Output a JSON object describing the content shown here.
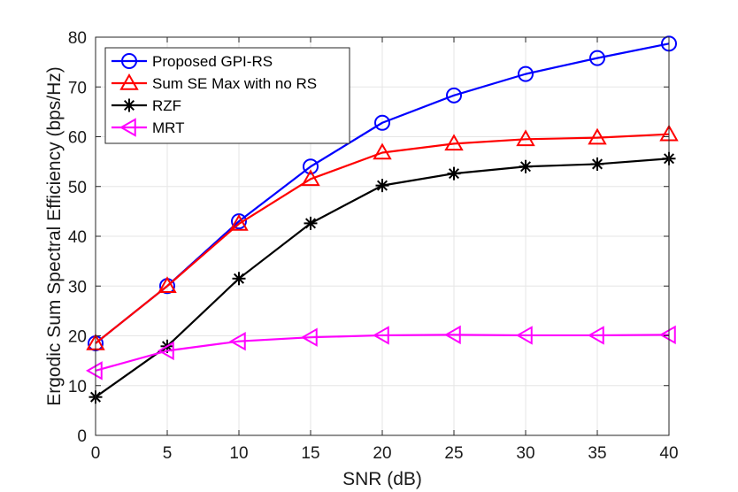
{
  "chart_data": {
    "type": "line",
    "title": "",
    "xlabel": "SNR (dB)",
    "ylabel": "Ergodic Sum Spectral Efficiency (bps/Hz)",
    "xlim": [
      0,
      40
    ],
    "ylim": [
      0,
      80
    ],
    "x_ticks": [
      0,
      5,
      10,
      15,
      20,
      25,
      30,
      35,
      40
    ],
    "y_ticks": [
      0,
      10,
      20,
      30,
      40,
      50,
      60,
      70,
      80
    ],
    "grid": true,
    "legend_position": "top-left",
    "x": [
      0,
      5,
      10,
      15,
      20,
      25,
      30,
      35,
      40
    ],
    "series": [
      {
        "name": "Proposed GPI-RS",
        "color": "#0000ff",
        "marker": "circle",
        "values": [
          18.5,
          30.0,
          43.0,
          54.0,
          62.8,
          68.3,
          72.6,
          75.8,
          78.7
        ]
      },
      {
        "name": "Sum SE Max with no RS",
        "color": "#ff0000",
        "marker": "triangle-up",
        "values": [
          18.5,
          30.0,
          42.5,
          51.5,
          56.8,
          58.6,
          59.5,
          59.8,
          60.5
        ]
      },
      {
        "name": "RZF",
        "color": "#000000",
        "marker": "asterisk",
        "values": [
          7.7,
          17.9,
          31.5,
          42.6,
          50.2,
          52.6,
          54.0,
          54.5,
          55.6
        ]
      },
      {
        "name": "MRT",
        "color": "#ff00ff",
        "marker": "triangle-left",
        "values": [
          13.0,
          17.0,
          18.9,
          19.7,
          20.1,
          20.2,
          20.1,
          20.1,
          20.2
        ]
      }
    ]
  }
}
